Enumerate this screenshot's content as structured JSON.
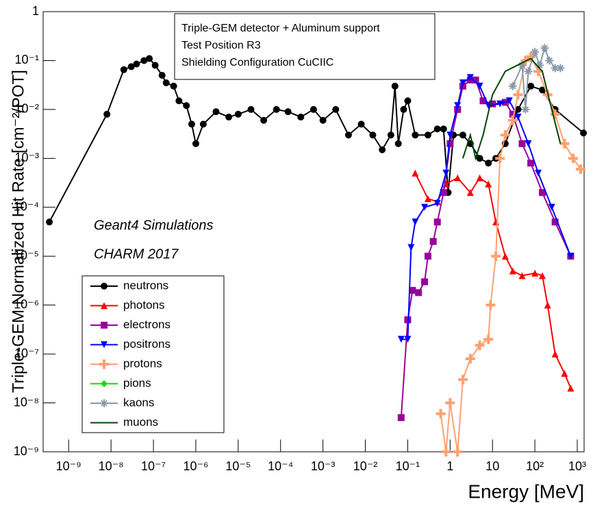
{
  "chart_data": {
    "type": "line",
    "xlabel": "Energy [MeV]",
    "ylabel": "Triple-GEM Normalized Hit Rate [cm⁻²/POT]",
    "annotations": [
      "Triple-GEM detector + Aluminum support",
      "Test Position R3",
      "Shielding Configuration CuCIIC",
      "Geant4 Simulations",
      "CHARM 2017"
    ],
    "xscale": "log",
    "yscale": "log",
    "xlim": [
      2.5e-10,
      1450
    ],
    "ylim": [
      1e-09,
      1
    ],
    "xticks": [
      {
        "value": 1e-09,
        "label": "10⁻⁹"
      },
      {
        "value": 1e-08,
        "label": "10⁻⁸"
      },
      {
        "value": 1e-07,
        "label": "10⁻⁷"
      },
      {
        "value": 1e-06,
        "label": "10⁻⁶"
      },
      {
        "value": 1e-05,
        "label": "10⁻⁵"
      },
      {
        "value": 0.0001,
        "label": "10⁻⁴"
      },
      {
        "value": 0.001,
        "label": "10⁻³"
      },
      {
        "value": 0.01,
        "label": "10⁻²"
      },
      {
        "value": 0.1,
        "label": "10⁻¹"
      },
      1,
      10,
      {
        "value": 100,
        "label": "10²"
      },
      {
        "value": 1000,
        "label": "10³"
      }
    ],
    "yticks": [
      {
        "value": 1e-09,
        "label": "10⁻⁹"
      },
      {
        "value": 1e-08,
        "label": "10⁻⁸"
      },
      {
        "value": 1e-07,
        "label": "10⁻⁷"
      },
      {
        "value": 1e-06,
        "label": "10⁻⁶"
      },
      {
        "value": 1e-05,
        "label": "10⁻⁵"
      },
      {
        "value": 0.0001,
        "label": "10⁻⁴"
      },
      {
        "value": 0.001,
        "label": "10⁻³"
      },
      {
        "value": 0.01,
        "label": "10⁻²"
      },
      {
        "value": 0.1,
        "label": "10⁻¹"
      },
      1
    ],
    "series": [
      {
        "name": "neutrons",
        "color": "#000000",
        "marker": "circle",
        "x": [
          3.5e-10,
          8e-09,
          2e-08,
          3e-08,
          4e-08,
          6e-08,
          8e-08,
          1.1e-07,
          1.6e-07,
          2e-07,
          3e-07,
          4e-07,
          6e-07,
          8e-07,
          1e-06,
          1.5e-06,
          3e-06,
          6e-06,
          1e-05,
          2e-05,
          4e-05,
          8e-05,
          0.00015,
          0.0003,
          0.0006,
          0.001,
          0.002,
          0.004,
          0.008,
          0.015,
          0.025,
          0.04,
          0.05,
          0.06,
          0.08,
          0.1,
          0.15,
          0.3,
          0.5,
          0.7,
          0.9,
          1.2,
          2,
          3,
          5,
          8,
          12,
          20,
          40,
          80,
          150,
          300,
          1400
        ],
        "values": [
          5e-05,
          0.008,
          0.065,
          0.075,
          0.085,
          0.1,
          0.11,
          0.08,
          0.05,
          0.035,
          0.03,
          0.015,
          0.012,
          0.005,
          0.002,
          0.005,
          0.009,
          0.007,
          0.008,
          0.01,
          0.006,
          0.01,
          0.009,
          0.007,
          0.01,
          0.006,
          0.01,
          0.003,
          0.005,
          0.003,
          0.0015,
          0.003,
          0.03,
          0.002,
          0.01,
          0.015,
          0.003,
          0.003,
          0.004,
          0.004,
          0.0002,
          0.003,
          0.003,
          0.002,
          0.001,
          0.0008,
          0.001,
          0.002,
          0.01,
          0.03,
          0.025,
          0.01,
          0.0033
        ]
      },
      {
        "name": "photons",
        "color": "#ff0000",
        "marker": "triangle",
        "x": [
          0.15,
          0.3,
          0.5,
          0.8,
          1.5,
          3,
          5,
          8,
          12,
          20,
          30,
          50,
          100,
          150,
          200,
          300,
          500,
          700
        ],
        "values": [
          0.0005,
          0.00015,
          0.00013,
          0.0003,
          0.0004,
          0.0002,
          0.0004,
          0.0003,
          5e-05,
          1e-05,
          5e-06,
          4e-06,
          4.5e-06,
          4e-06,
          1e-06,
          1e-07,
          4e-08,
          2e-08
        ]
      },
      {
        "name": "electrons",
        "color": "#990099",
        "marker": "square",
        "x": [
          0.07,
          0.1,
          0.13,
          0.18,
          0.25,
          0.3,
          0.4,
          0.5,
          0.7,
          1,
          1.5,
          2,
          3,
          4,
          6,
          10,
          20,
          30,
          50,
          80,
          150,
          300,
          700
        ],
        "values": [
          5e-09,
          5e-07,
          2e-06,
          1.8e-06,
          3e-06,
          1e-05,
          2e-05,
          5e-05,
          0.0002,
          0.002,
          0.01,
          0.03,
          0.04,
          0.04,
          0.015,
          0.013,
          0.014,
          0.008,
          0.002,
          0.0008,
          0.0002,
          5e-05,
          1e-05
        ]
      },
      {
        "name": "positrons",
        "color": "#0000ff",
        "marker": "down",
        "x": [
          0.07,
          0.1,
          0.12,
          0.15,
          0.25,
          0.5,
          0.8,
          1,
          1.5,
          2,
          3,
          5,
          8,
          15,
          25,
          40,
          70,
          120,
          250,
          700
        ],
        "values": [
          2e-07,
          2e-07,
          1.5e-05,
          5e-05,
          0.0001,
          0.00012,
          0.0005,
          0.003,
          0.012,
          0.035,
          0.045,
          0.03,
          0.012,
          0.013,
          0.015,
          0.007,
          0.002,
          0.0005,
          0.0001,
          1e-05
        ]
      },
      {
        "name": "protons",
        "color": "#ffa070",
        "marker": "cross",
        "x": [
          0.6,
          0.8,
          1,
          1.5,
          2,
          3,
          5,
          8,
          9,
          12,
          15,
          20,
          30,
          40,
          60,
          80,
          120,
          200,
          300,
          500,
          800,
          1200
        ],
        "values": [
          6e-09,
          1e-09,
          1e-08,
          1e-09,
          3e-08,
          8e-08,
          1.5e-07,
          2e-07,
          1e-06,
          1e-05,
          0.001,
          0.003,
          0.006,
          0.02,
          0.1,
          0.12,
          0.06,
          0.02,
          0.008,
          0.002,
          0.001,
          0.0006
        ]
      },
      {
        "name": "pions",
        "color": "#00dd00",
        "marker": "diamond",
        "x": [],
        "values": []
      },
      {
        "name": "kaons",
        "color": "#8899aa",
        "marker": "star",
        "x": [
          30,
          50,
          60,
          70,
          100,
          130,
          170,
          220,
          300,
          400
        ],
        "values": [
          0.03,
          0.08,
          0.01,
          0.06,
          0.15,
          0.08,
          0.18,
          0.1,
          0.07,
          0.07
        ]
      },
      {
        "name": "muons",
        "color": "#004400",
        "marker": "none",
        "x": [
          2,
          3,
          4,
          6,
          10,
          20,
          50,
          80,
          150,
          250,
          400
        ],
        "values": [
          0.001,
          0.003,
          0.001,
          0.003,
          0.02,
          0.06,
          0.09,
          0.11,
          0.06,
          0.01,
          0.002
        ]
      }
    ]
  }
}
